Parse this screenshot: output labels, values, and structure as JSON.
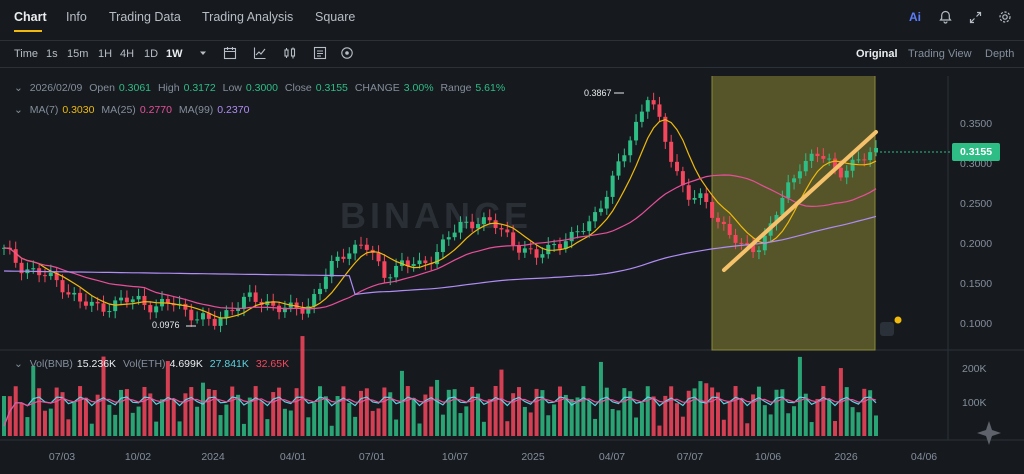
{
  "tabs": [
    "Chart",
    "Info",
    "Trading Data",
    "Trading Analysis",
    "Square"
  ],
  "top_icons": [
    "ai-icon",
    "bell-icon",
    "expand-icon",
    "settings-icon"
  ],
  "ai_label": "Ai",
  "toolbar": {
    "time_label": "Time",
    "intervals": [
      "1s",
      "15m",
      "1H",
      "4H",
      "1D",
      "1W"
    ],
    "active_interval": "1W",
    "view_modes": [
      "Original",
      "Trading View",
      "Depth"
    ],
    "active_view": "Original"
  },
  "ohlc": {
    "date": "2026/02/09",
    "open_label": "Open",
    "open": "0.3061",
    "high_label": "High",
    "high": "0.3172",
    "low_label": "Low",
    "low": "0.3000",
    "close_label": "Close",
    "close": "0.3155",
    "change_label": "CHANGE",
    "change": "3.00%",
    "range_label": "Range",
    "range": "5.61%"
  },
  "ma": {
    "ma7_label": "MA(7)",
    "ma7": "0.3030",
    "ma25_label": "MA(25)",
    "ma25": "0.2770",
    "ma99_label": "MA(99)",
    "ma99": "0.2370"
  },
  "volume_legend": {
    "vol_bnb_label": "Vol(BNB)",
    "vol_bnb": "15.236K",
    "vol_eth_label": "Vol(ETH)",
    "vol_eth": "4.699K",
    "v1": "27.841K",
    "v2": "32.65K"
  },
  "watermark": "BINANCE",
  "current_price": "0.3155",
  "high_marker": "0.3867",
  "low_marker": "0.0976",
  "price_ticks": [
    "0.3500",
    "0.3000",
    "0.2500",
    "0.2000",
    "0.1500",
    "0.1000"
  ],
  "volume_ticks": [
    "200K",
    "100K"
  ],
  "x_ticks": [
    "07/03",
    "10/02",
    "2024",
    "04/01",
    "07/01",
    "10/07",
    "2025",
    "04/07",
    "07/07",
    "10/06",
    "2026",
    "04/06"
  ],
  "colors": {
    "up": "#2ebd85",
    "down": "#f6465d",
    "ma7": "#f0b90b",
    "ma25": "#e84f9a",
    "ma99": "#b08cf5",
    "highlight": "#6b6a2e",
    "trendline": "#f5c26b"
  },
  "chart_data": {
    "type": "candlestick",
    "interval": "1W",
    "x_range": [
      "2023-06",
      "2026-04"
    ],
    "y_ticks": [
      0.35,
      0.3,
      0.25,
      0.2,
      0.15,
      0.1
    ],
    "current_close": 0.3155,
    "highest": 0.3867,
    "lowest": 0.0976,
    "price_path": [
      0.19,
      0.17,
      0.16,
      0.15,
      0.125,
      0.12,
      0.125,
      0.13,
      0.12,
      0.125,
      0.11,
      0.0976,
      0.12,
      0.13,
      0.125,
      0.115,
      0.12,
      0.16,
      0.19,
      0.2,
      0.16,
      0.175,
      0.17,
      0.195,
      0.22,
      0.23,
      0.22,
      0.2,
      0.18,
      0.2,
      0.205,
      0.23,
      0.27,
      0.33,
      0.3867,
      0.32,
      0.26,
      0.25,
      0.22,
      0.19,
      0.2,
      0.25,
      0.3,
      0.31,
      0.29,
      0.3,
      0.3155
    ],
    "ma7_last": 0.303,
    "ma25_last": 0.277,
    "ma99_last": 0.237,
    "volume_ticks": [
      200000,
      100000
    ]
  }
}
